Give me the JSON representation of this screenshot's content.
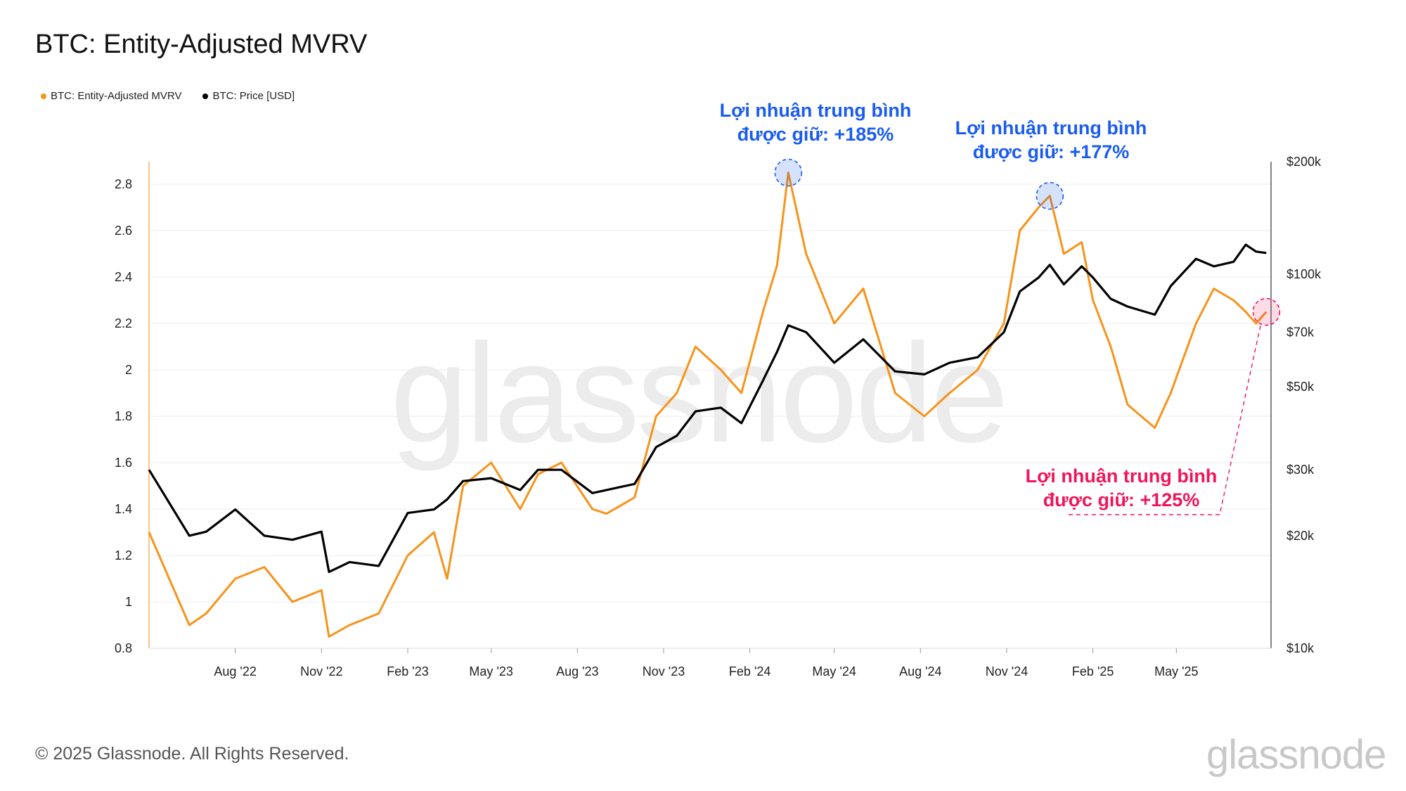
{
  "title": "BTC: Entity-Adjusted MVRV",
  "legend": [
    {
      "label": "BTC: Entity-Adjusted MVRV",
      "color": "#f7931a"
    },
    {
      "label": "BTC: Price [USD]",
      "color": "#000000"
    }
  ],
  "footer": "© 2025 Glassnode. All Rights Reserved.",
  "brand": "glassnode",
  "watermark": "glassnode",
  "annotations": [
    {
      "line1": "Lợi nhuận trung bình",
      "line2": "được giữ: +185%",
      "color": "#1a5cf0"
    },
    {
      "line1": "Lợi nhuận trung bình",
      "line2": "được giữ: +177%",
      "color": "#1a5cf0"
    },
    {
      "line1": "Lợi nhuận trung bình",
      "line2": "được giữ: +125%",
      "color": "#f0155a"
    }
  ],
  "chart_data": {
    "type": "line",
    "title": "BTC: Entity-Adjusted MVRV",
    "x_tick_labels": [
      "Aug '22",
      "Nov '22",
      "Feb '23",
      "May '23",
      "Aug '23",
      "Nov '23",
      "Feb '24",
      "May '24",
      "Aug '24",
      "Nov '24",
      "Feb '25",
      "May '25"
    ],
    "y_left": {
      "ticks": [
        0.8,
        1,
        1.2,
        1.4,
        1.6,
        1.8,
        2,
        2.2,
        2.4,
        2.6,
        2.8
      ],
      "tick_labels": [
        "0.8",
        "1",
        "1.2",
        "1.4",
        "1.6",
        "1.8",
        "2",
        "2.2",
        "2.4",
        "2.6",
        "2.8"
      ],
      "range": [
        0.8,
        2.9
      ]
    },
    "y_right": {
      "scale": "log",
      "ticks": [
        10000,
        20000,
        30000,
        50000,
        70000,
        100000,
        200000
      ],
      "tick_labels": [
        "$10k",
        "$20k",
        "$30k",
        "$50k",
        "$70k",
        "$100k",
        "$200k"
      ],
      "range": [
        10000,
        200000
      ]
    },
    "grid": true,
    "x": [
      "2022-05-01",
      "2022-06-13",
      "2022-07-01",
      "2022-08-01",
      "2022-09-01",
      "2022-10-01",
      "2022-11-01",
      "2022-11-09",
      "2022-12-01",
      "2023-01-01",
      "2023-02-01",
      "2023-03-01",
      "2023-03-15",
      "2023-04-01",
      "2023-05-01",
      "2023-06-01",
      "2023-06-20",
      "2023-07-15",
      "2023-08-17",
      "2023-09-01",
      "2023-10-01",
      "2023-10-24",
      "2023-11-15",
      "2023-12-05",
      "2024-01-01",
      "2024-01-23",
      "2024-02-15",
      "2024-03-01",
      "2024-03-13",
      "2024-04-01",
      "2024-05-01",
      "2024-06-01",
      "2024-07-05",
      "2024-08-05",
      "2024-09-01",
      "2024-10-01",
      "2024-10-29",
      "2024-11-15",
      "2024-12-05",
      "2024-12-17",
      "2025-01-01",
      "2025-01-20",
      "2025-02-01",
      "2025-02-20",
      "2025-03-10",
      "2025-04-08",
      "2025-04-25",
      "2025-05-22",
      "2025-06-10",
      "2025-07-01",
      "2025-07-14",
      "2025-07-25",
      "2025-08-05"
    ],
    "series": [
      {
        "name": "BTC: Entity-Adjusted MVRV",
        "color": "#f7931a",
        "axis": "left",
        "values": [
          1.3,
          0.9,
          0.95,
          1.1,
          1.15,
          1.0,
          1.05,
          0.85,
          0.9,
          0.95,
          1.2,
          1.3,
          1.1,
          1.5,
          1.6,
          1.4,
          1.55,
          1.6,
          1.4,
          1.38,
          1.45,
          1.8,
          1.9,
          2.1,
          2.0,
          1.9,
          2.25,
          2.45,
          2.85,
          2.5,
          2.2,
          2.35,
          1.9,
          1.8,
          1.9,
          2.0,
          2.2,
          2.6,
          2.7,
          2.75,
          2.5,
          2.55,
          2.3,
          2.1,
          1.85,
          1.75,
          1.9,
          2.2,
          2.35,
          2.3,
          2.25,
          2.2,
          2.25
        ]
      },
      {
        "name": "BTC: Price [USD]",
        "color": "#000000",
        "axis": "right",
        "values": [
          30000,
          20000,
          20500,
          23500,
          20000,
          19500,
          20500,
          16000,
          17000,
          16600,
          23000,
          23500,
          25000,
          28000,
          28500,
          26500,
          30000,
          30000,
          26000,
          26500,
          27500,
          34500,
          37000,
          43000,
          44000,
          40000,
          52000,
          62000,
          73000,
          70000,
          58000,
          67000,
          55000,
          54000,
          58000,
          60000,
          70000,
          90000,
          98000,
          106000,
          94000,
          105000,
          98000,
          86000,
          82000,
          78000,
          93000,
          110000,
          105000,
          108000,
          120000,
          115000,
          114000
        ]
      }
    ]
  }
}
